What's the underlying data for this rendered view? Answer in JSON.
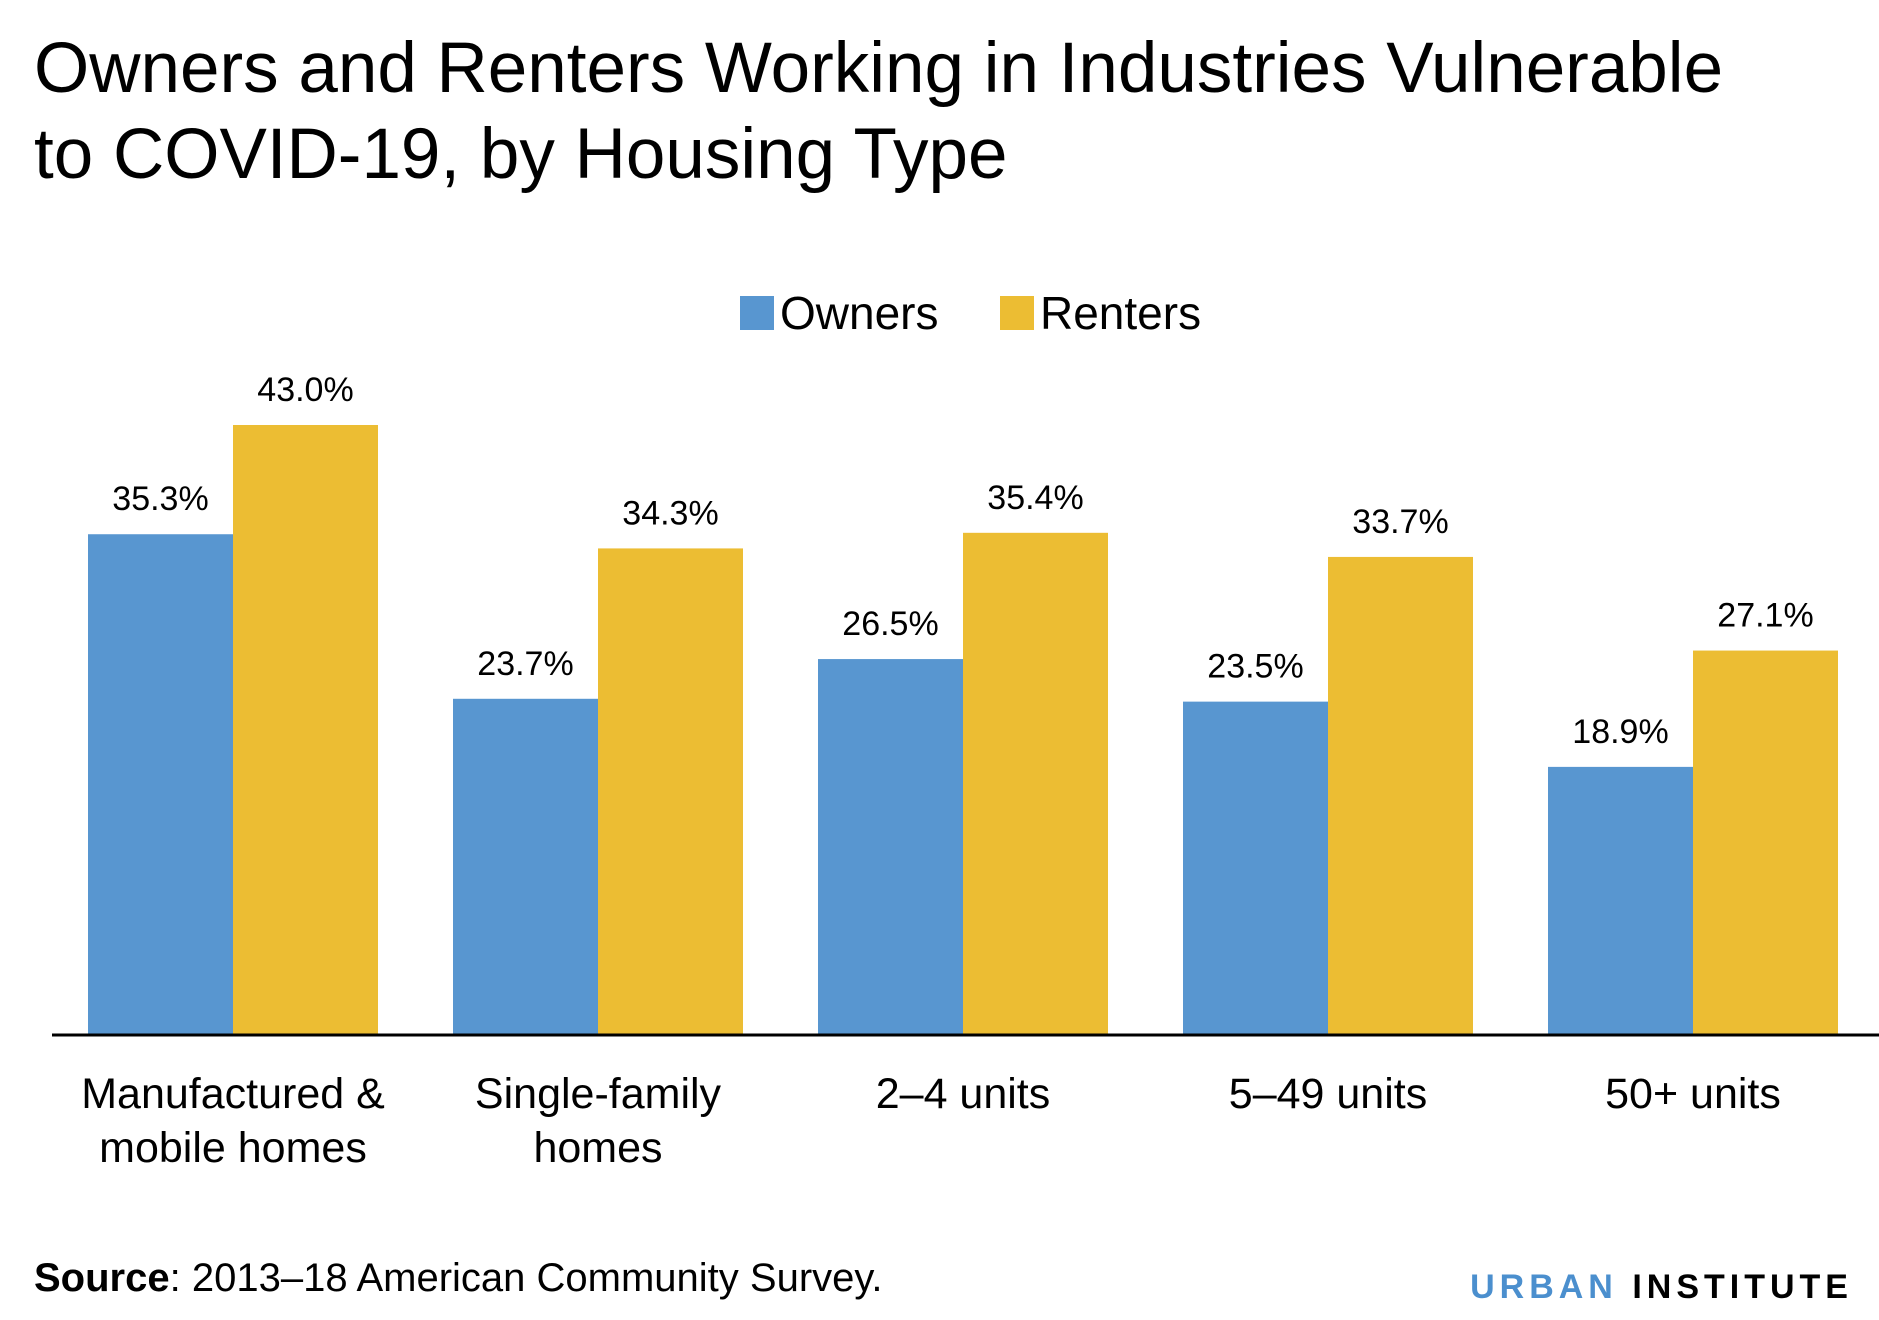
{
  "title": {
    "line1": "Owners and Renters Working in Industries Vulnerable",
    "line2": "to COVID-19, by Housing Type"
  },
  "colors": {
    "owners": "#5896d0",
    "renters": "#ecbd33",
    "axis": "#000000"
  },
  "chart_data": {
    "type": "bar",
    "title": "Owners and Renters Working in Industries Vulnerable to COVID-19, by Housing Type",
    "categories": [
      [
        "Manufactured &",
        "mobile homes"
      ],
      [
        "Single-family",
        "homes"
      ],
      [
        "2–4 units"
      ],
      [
        "5–49 units"
      ],
      [
        "50+ units"
      ]
    ],
    "series": [
      {
        "name": "Owners",
        "values": [
          35.3,
          23.7,
          26.5,
          23.5,
          18.9
        ],
        "labels": [
          "35.3%",
          "23.7%",
          "26.5%",
          "23.5%",
          "18.9%"
        ]
      },
      {
        "name": "Renters",
        "values": [
          43.0,
          34.3,
          35.4,
          33.7,
          27.1
        ],
        "labels": [
          "43.0%",
          "34.3%",
          "35.4%",
          "33.7%",
          "27.1%"
        ]
      }
    ],
    "ylim": [
      0,
      43.0
    ],
    "grid": false,
    "legend": "top-center"
  },
  "footer": {
    "source_label": "Source",
    "source_text": ": 2013–18 American Community Survey.",
    "brand_urban": "URBAN",
    "brand_institute": "INSTITUTE"
  }
}
